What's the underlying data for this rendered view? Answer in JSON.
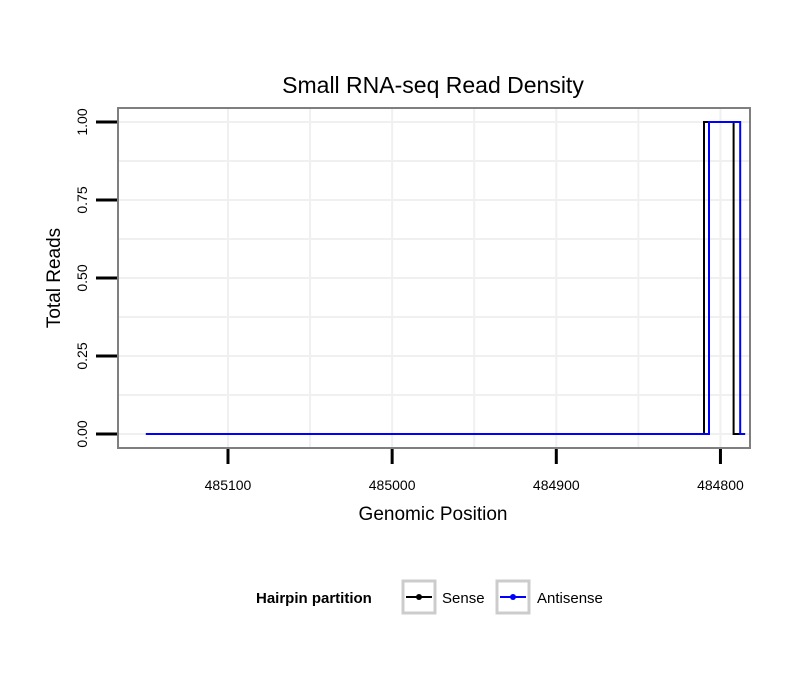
{
  "chart_data": {
    "type": "line",
    "title": "Small RNA-seq Read Density",
    "xlabel": "Genomic Position",
    "ylabel": "Total Reads",
    "xlim": [
      485167,
      484782
    ],
    "x_reversed": true,
    "ylim": [
      -0.045,
      1.045
    ],
    "x_ticks": [
      485100,
      485000,
      484900,
      484800
    ],
    "x_tick_labels": [
      "485100",
      "485000",
      "484900",
      "484800"
    ],
    "y_ticks": [
      0,
      0.25,
      0.5,
      0.75,
      1.0
    ],
    "y_tick_labels": [
      "0.00",
      "0.25",
      "0.50",
      "0.75",
      "1.00"
    ],
    "grid": true,
    "legend": {
      "title": "Hairpin partition",
      "position": "bottom"
    },
    "series": [
      {
        "name": "Sense",
        "color": "#000000",
        "x": [
          485150,
          484810,
          484810,
          484792,
          484792,
          484785
        ],
        "y": [
          0,
          0,
          1,
          1,
          0,
          0
        ]
      },
      {
        "name": "Antisense",
        "color": "#0000ff",
        "x": [
          485150,
          484807,
          484807,
          484788,
          484788,
          484785
        ],
        "y": [
          0,
          0,
          1,
          1,
          0,
          0
        ]
      }
    ]
  }
}
